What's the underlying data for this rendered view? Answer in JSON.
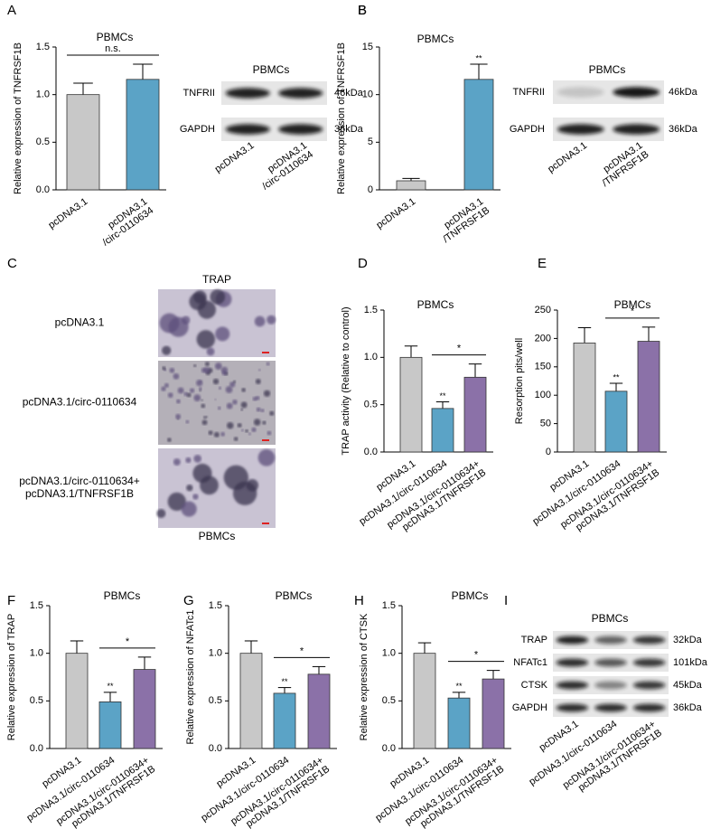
{
  "chart_data": [
    {
      "type": "bar",
      "panel": "A",
      "title": "PBMCs",
      "y_label": "Relative expression of TNFRSF1B",
      "categories": [
        [
          "pcDNA3.1"
        ],
        [
          "pcDNA3.1",
          "/circ-0110634"
        ]
      ],
      "values": [
        1.0,
        1.16
      ],
      "errors": [
        0.12,
        0.16
      ],
      "colors": [
        "#c8c8c8",
        "#5ba3c6"
      ],
      "significance": [
        null,
        null
      ],
      "bracket": {
        "label": "n.s."
      },
      "ylim": [
        0,
        1.5
      ],
      "yticks": [
        {
          "value": 0,
          "label": "0.0"
        },
        0.5,
        {
          "value": 1,
          "label": "1.0"
        },
        1.5
      ]
    },
    {
      "type": "bar",
      "panel": "B",
      "title": "PBMCs",
      "y_label": "Relative expression of TNFRSF1B",
      "categories": [
        [
          "pcDNA3.1"
        ],
        [
          "pcDNA3.1",
          "/TNFRSF1B"
        ]
      ],
      "values": [
        0.95,
        11.6
      ],
      "errors": [
        0.25,
        1.6
      ],
      "colors": [
        "#c8c8c8",
        "#5ba3c6"
      ],
      "significance": [
        null,
        "**"
      ],
      "ylim": [
        0,
        15
      ],
      "yticks": [
        0,
        5,
        10,
        15
      ]
    },
    {
      "type": "bar",
      "panel": "D",
      "title": "PBMCs",
      "y_label": "TRAP activity (Relative to control)",
      "categories": [
        [
          "pcDNA3.1"
        ],
        [
          "pcDNA3.1/circ-0110634"
        ],
        [
          "pcDNA3.1/circ-0110634+",
          "pcDNA3.1/TNFRSF1B"
        ]
      ],
      "values": [
        1.0,
        0.46,
        0.79
      ],
      "errors": [
        0.12,
        0.07,
        0.14
      ],
      "colors": [
        "#c8c8c8",
        "#5ba3c6",
        "#8b71a8"
      ],
      "significance": [
        null,
        "**",
        null
      ],
      "bracket": {
        "label": "*"
      },
      "ylim": [
        0,
        1.5
      ],
      "yticks": [
        {
          "value": 0,
          "label": "0.0"
        },
        0.5,
        {
          "value": 1,
          "label": "1.0"
        },
        1.5
      ]
    },
    {
      "type": "bar",
      "panel": "E",
      "title": "PBMCs",
      "y_label": "Resorption pits/well",
      "categories": [
        [
          "pcDNA3.1"
        ],
        [
          "pcDNA3.1/circ-0110634"
        ],
        [
          "pcDNA3.1/circ-0110634+",
          "pcDNA3.1/TNFRSF1B"
        ]
      ],
      "values": [
        192,
        107,
        195
      ],
      "errors": [
        27,
        14,
        25
      ],
      "colors": [
        "#c8c8c8",
        "#5ba3c6",
        "#8b71a8"
      ],
      "significance": [
        null,
        "**",
        null
      ],
      "bracket": {
        "label": "*"
      },
      "ylim": [
        0,
        250
      ],
      "yticks": [
        0,
        50,
        100,
        150,
        200,
        250
      ]
    },
    {
      "type": "bar",
      "panel": "F",
      "title": "PBMCs",
      "y_label": "Relative expression of TRAP",
      "categories": [
        [
          "pcDNA3.1"
        ],
        [
          "pcDNA3.1/circ-0110634"
        ],
        [
          "pcDNA3.1/circ-0110634+",
          "pcDNA3.1/TNFRSF1B"
        ]
      ],
      "values": [
        1.0,
        0.49,
        0.83
      ],
      "errors": [
        0.13,
        0.1,
        0.13
      ],
      "colors": [
        "#c8c8c8",
        "#5ba3c6",
        "#8b71a8"
      ],
      "significance": [
        null,
        "**",
        null
      ],
      "bracket": {
        "label": "*"
      },
      "ylim": [
        0,
        1.5
      ],
      "yticks": [
        {
          "value": 0,
          "label": "0.0"
        },
        0.5,
        {
          "value": 1,
          "label": "1.0"
        },
        1.5
      ]
    },
    {
      "type": "bar",
      "panel": "G",
      "title": "PBMCs",
      "y_label": "Relative expression of NFATc1",
      "categories": [
        [
          "pcDNA3.1"
        ],
        [
          "pcDNA3.1/circ-0110634"
        ],
        [
          "pcDNA3.1/circ-0110634+",
          "pcDNA3.1/TNFRSF1B"
        ]
      ],
      "values": [
        1.0,
        0.58,
        0.78
      ],
      "errors": [
        0.13,
        0.06,
        0.08
      ],
      "colors": [
        "#c8c8c8",
        "#5ba3c6",
        "#8b71a8"
      ],
      "significance": [
        null,
        "**",
        null
      ],
      "bracket": {
        "label": "*"
      },
      "ylim": [
        0,
        1.5
      ],
      "yticks": [
        {
          "value": 0,
          "label": "0.0"
        },
        0.5,
        {
          "value": 1,
          "label": "1.0"
        },
        1.5
      ]
    },
    {
      "type": "bar",
      "panel": "H",
      "title": "PBMCs",
      "y_label": "Relative expression of CTSK",
      "categories": [
        [
          "pcDNA3.1"
        ],
        [
          "pcDNA3.1/circ-0110634"
        ],
        [
          "pcDNA3.1/circ-0110634+",
          "pcDNA3.1/TNFRSF1B"
        ]
      ],
      "values": [
        1.0,
        0.53,
        0.73
      ],
      "errors": [
        0.11,
        0.06,
        0.09
      ],
      "colors": [
        "#c8c8c8",
        "#5ba3c6",
        "#8b71a8"
      ],
      "significance": [
        null,
        "**",
        null
      ],
      "bracket": {
        "label": "*"
      },
      "ylim": [
        0,
        1.5
      ],
      "yticks": [
        {
          "value": 0,
          "label": "0.0"
        },
        0.5,
        {
          "value": 1,
          "label": "1.0"
        },
        1.5
      ]
    }
  ],
  "blots": [
    {
      "title": "PBMCs",
      "rows": [
        {
          "label": "TNFRII",
          "size": "46kDa"
        },
        {
          "label": "GAPDH",
          "size": "36kDa"
        }
      ],
      "lanes": [
        [
          "pcDNA3.1"
        ],
        [
          "pcDNA3.1",
          "/circ-0110634"
        ]
      ]
    },
    {
      "panel": "B",
      "title": "PBMCs",
      "rows": [
        {
          "label": "TNFRII",
          "size": "46kDa"
        },
        {
          "label": "GAPDH",
          "size": "36kDa"
        }
      ],
      "lanes": [
        [
          "pcDNA3.1"
        ],
        [
          "pcDNA3.1",
          "/TNFRSF1B"
        ]
      ]
    },
    {
      "panel": "I",
      "title": "PBMCs",
      "rows": [
        {
          "label": "TRAP",
          "size": "32kDa"
        },
        {
          "label": "NFATc1",
          "size": "101kDa"
        },
        {
          "label": "CTSK",
          "size": "45kDa"
        },
        {
          "label": "GAPDH",
          "size": "36kDa"
        }
      ],
      "lanes": [
        [
          "pcDNA3.1"
        ],
        [
          "pcDNA3.1/circ-0110634"
        ],
        [
          "pcDNA3.1/circ-0110634+",
          "pcDNA3.1/TNFRSF1B"
        ]
      ]
    }
  ],
  "images": {
    "panel": "C",
    "title": "TRAP",
    "rows": [
      [
        "pcDNA3.1"
      ],
      [
        "pcDNA3.1/circ-0110634"
      ],
      [
        "pcDNA3.1/circ-0110634+",
        "pcDNA3.1/TNFRSF1B"
      ]
    ],
    "footer": "PBMCs"
  }
}
